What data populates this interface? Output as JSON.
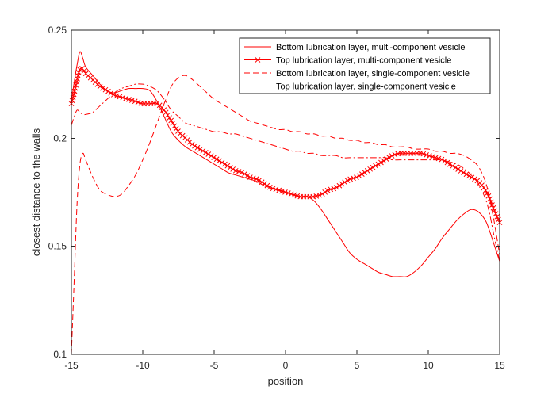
{
  "chart_data": {
    "type": "line",
    "title": "",
    "xlabel": "position",
    "ylabel": "closest distance to the walls",
    "xlim": [
      -15,
      15
    ],
    "ylim": [
      0.1,
      0.25
    ],
    "xticks": [
      -15,
      -10,
      -5,
      0,
      5,
      10,
      15
    ],
    "yticks": [
      0.1,
      0.15,
      0.2,
      0.25
    ],
    "xtick_labels": [
      "-15",
      "-10",
      "-5",
      "0",
      "5",
      "10",
      "15"
    ],
    "ytick_labels": [
      "0.1",
      "0.15",
      "0.2",
      "0.25"
    ],
    "grid": false,
    "legend_position": "top-right",
    "line_color": "#ff0000",
    "series": [
      {
        "name": "Bottom lubrication layer, multi-component vesicle",
        "line_style": "solid",
        "marker": "none",
        "x": [
          -15,
          -14.8,
          -14.6,
          -14.4,
          -14.2,
          -14,
          -13.5,
          -13,
          -12.5,
          -12,
          -11.5,
          -11,
          -10.5,
          -10,
          -9.5,
          -9,
          -8.5,
          -8,
          -7.5,
          -7,
          -6.5,
          -6,
          -5.5,
          -5,
          -4.5,
          -4,
          -3.5,
          -3,
          -2.5,
          -2,
          -1.5,
          -1,
          -0.5,
          0,
          0.5,
          1,
          1.5,
          2,
          2.5,
          3,
          3.5,
          4,
          4.5,
          5,
          5.5,
          6,
          6.5,
          7,
          7.5,
          8,
          8.5,
          9,
          9.5,
          10,
          10.5,
          11,
          11.5,
          12,
          12.5,
          13,
          13.5,
          14,
          14.3,
          14.6,
          15
        ],
        "y": [
          0.217,
          0.226,
          0.234,
          0.24,
          0.237,
          0.233,
          0.229,
          0.225,
          0.222,
          0.221,
          0.222,
          0.223,
          0.223,
          0.223,
          0.222,
          0.217,
          0.21,
          0.203,
          0.199,
          0.196,
          0.194,
          0.192,
          0.19,
          0.188,
          0.186,
          0.184,
          0.183,
          0.182,
          0.181,
          0.18,
          0.178,
          0.177,
          0.176,
          0.175,
          0.174,
          0.173,
          0.173,
          0.171,
          0.167,
          0.162,
          0.157,
          0.152,
          0.147,
          0.144,
          0.142,
          0.14,
          0.138,
          0.137,
          0.136,
          0.136,
          0.136,
          0.138,
          0.141,
          0.145,
          0.149,
          0.154,
          0.158,
          0.162,
          0.165,
          0.167,
          0.166,
          0.162,
          0.157,
          0.151,
          0.143
        ]
      },
      {
        "name": "Top lubrication layer, multi-component vesicle",
        "line_style": "solid",
        "marker": "x",
        "x": [
          -15,
          -14.8,
          -14.6,
          -14.4,
          -14.2,
          -14,
          -13.5,
          -13,
          -12.5,
          -12,
          -11.5,
          -11,
          -10.5,
          -10,
          -9.5,
          -9,
          -8.5,
          -8,
          -7.5,
          -7,
          -6.5,
          -6,
          -5.5,
          -5,
          -4.5,
          -4,
          -3.5,
          -3,
          -2.5,
          -2,
          -1.5,
          -1,
          -0.5,
          0,
          0.5,
          1,
          1.5,
          2,
          2.5,
          3,
          3.5,
          4,
          4.5,
          5,
          5.5,
          6,
          6.5,
          7,
          7.5,
          8,
          8.5,
          9,
          9.5,
          10,
          10.5,
          11,
          11.5,
          12,
          12.5,
          13,
          13.5,
          14,
          14.3,
          14.6,
          15
        ],
        "y": [
          0.216,
          0.221,
          0.227,
          0.232,
          0.232,
          0.23,
          0.227,
          0.224,
          0.222,
          0.22,
          0.219,
          0.218,
          0.217,
          0.216,
          0.216,
          0.216,
          0.213,
          0.208,
          0.203,
          0.2,
          0.197,
          0.195,
          0.193,
          0.191,
          0.189,
          0.187,
          0.185,
          0.184,
          0.182,
          0.181,
          0.179,
          0.177,
          0.176,
          0.175,
          0.174,
          0.173,
          0.173,
          0.173,
          0.174,
          0.176,
          0.177,
          0.179,
          0.181,
          0.182,
          0.184,
          0.186,
          0.188,
          0.19,
          0.192,
          0.193,
          0.193,
          0.193,
          0.193,
          0.192,
          0.191,
          0.19,
          0.188,
          0.186,
          0.184,
          0.182,
          0.18,
          0.176,
          0.172,
          0.167,
          0.161
        ]
      },
      {
        "name": "Bottom lubrication layer, single-component vesicle",
        "line_style": "dashed",
        "marker": "none",
        "x": [
          -15,
          -14.8,
          -14.6,
          -14.4,
          -14.2,
          -14,
          -13.5,
          -13,
          -12.5,
          -12,
          -11.5,
          -11,
          -10.5,
          -10,
          -9.5,
          -9,
          -8.5,
          -8,
          -7.5,
          -7,
          -6.5,
          -6,
          -5.5,
          -5,
          -4.5,
          -4,
          -3.5,
          -3,
          -2.5,
          -2,
          -1.5,
          -1,
          -0.5,
          0,
          0.5,
          1,
          1.5,
          2,
          2.5,
          3,
          3.5,
          4,
          4.5,
          5,
          5.5,
          6,
          6.5,
          7,
          7.5,
          8,
          8.5,
          9,
          9.5,
          10,
          10.5,
          11,
          11.5,
          12,
          12.5,
          13,
          13.5,
          14,
          14.3,
          14.6,
          15
        ],
        "y": [
          0.1,
          0.135,
          0.17,
          0.188,
          0.193,
          0.19,
          0.182,
          0.176,
          0.174,
          0.173,
          0.174,
          0.178,
          0.183,
          0.19,
          0.198,
          0.207,
          0.216,
          0.224,
          0.228,
          0.229,
          0.227,
          0.224,
          0.221,
          0.218,
          0.216,
          0.214,
          0.212,
          0.21,
          0.208,
          0.207,
          0.206,
          0.205,
          0.204,
          0.204,
          0.203,
          0.203,
          0.202,
          0.202,
          0.201,
          0.201,
          0.2,
          0.2,
          0.199,
          0.199,
          0.198,
          0.198,
          0.197,
          0.197,
          0.196,
          0.196,
          0.196,
          0.195,
          0.195,
          0.195,
          0.194,
          0.194,
          0.193,
          0.193,
          0.192,
          0.19,
          0.187,
          0.18,
          0.172,
          0.162,
          0.146
        ]
      },
      {
        "name": "Top lubrication layer, single-component vesicle",
        "line_style": "dashdot",
        "marker": "none",
        "x": [
          -15,
          -14.8,
          -14.6,
          -14.4,
          -14.2,
          -14,
          -13.5,
          -13,
          -12.5,
          -12,
          -11.5,
          -11,
          -10.5,
          -10,
          -9.5,
          -9,
          -8.5,
          -8,
          -7.5,
          -7,
          -6.5,
          -6,
          -5.5,
          -5,
          -4.5,
          -4,
          -3.5,
          -3,
          -2.5,
          -2,
          -1.5,
          -1,
          -0.5,
          0,
          0.5,
          1,
          1.5,
          2,
          2.5,
          3,
          3.5,
          4,
          4.5,
          5,
          5.5,
          6,
          6.5,
          7,
          7.5,
          8,
          8.5,
          9,
          9.5,
          10,
          10.5,
          11,
          11.5,
          12,
          12.5,
          13,
          13.5,
          14,
          14.3,
          14.6,
          15
        ],
        "y": [
          0.206,
          0.21,
          0.213,
          0.212,
          0.211,
          0.211,
          0.212,
          0.215,
          0.218,
          0.221,
          0.223,
          0.224,
          0.225,
          0.225,
          0.224,
          0.222,
          0.218,
          0.213,
          0.21,
          0.207,
          0.206,
          0.205,
          0.204,
          0.203,
          0.203,
          0.202,
          0.202,
          0.201,
          0.2,
          0.199,
          0.198,
          0.197,
          0.196,
          0.195,
          0.194,
          0.194,
          0.193,
          0.193,
          0.192,
          0.192,
          0.192,
          0.191,
          0.191,
          0.191,
          0.191,
          0.191,
          0.191,
          0.191,
          0.19,
          0.19,
          0.19,
          0.19,
          0.19,
          0.19,
          0.19,
          0.19,
          0.189,
          0.188,
          0.186,
          0.183,
          0.179,
          0.172,
          0.165,
          0.155,
          0.143
        ]
      }
    ]
  }
}
